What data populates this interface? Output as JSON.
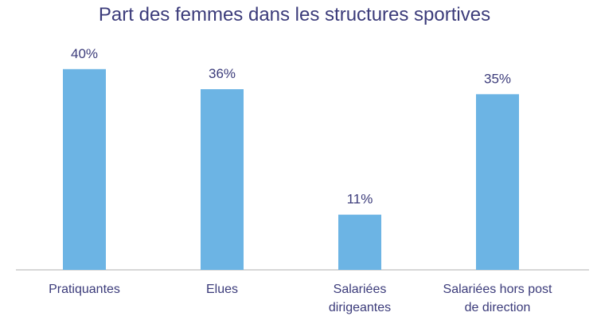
{
  "chart_data": {
    "type": "bar",
    "title": "Part des femmes dans les structures sportives",
    "categories": [
      [
        "Pratiquantes"
      ],
      [
        "Elues"
      ],
      [
        "Salariées",
        "dirigeantes"
      ],
      [
        "Salariées hors post",
        "de direction"
      ]
    ],
    "values": [
      40,
      36,
      11,
      35
    ],
    "value_labels": [
      "40%",
      "36%",
      "11%",
      "35%"
    ],
    "unit": "%",
    "ylim": [
      0,
      46
    ],
    "grid": false,
    "legend": "none",
    "colors": {
      "bar": "#6cb4e4",
      "axis": "#bfbfbf",
      "text": "#3b3b7a"
    }
  }
}
